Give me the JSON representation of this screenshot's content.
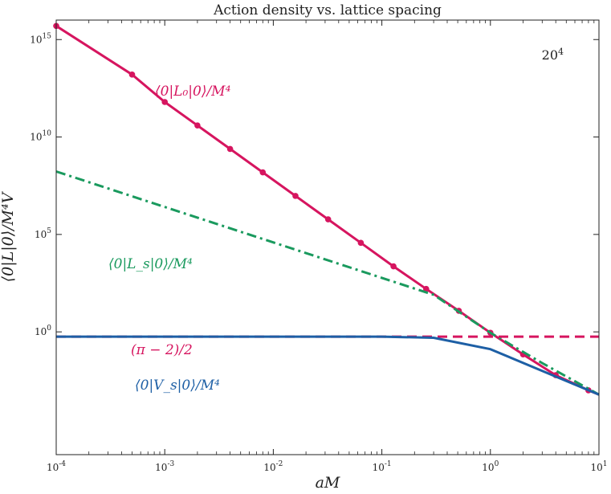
{
  "chart_data": {
    "type": "line",
    "title": "Action density vs. lattice spacing",
    "xlabel": "aM",
    "ylabel": "⟨0|L|0⟩/M⁴V",
    "x_scale": "log",
    "y_scale": "log",
    "xlim": [
      0.0001,
      10
    ],
    "ylim_log10": [
      -6.3,
      16
    ],
    "x_ticks": [
      {
        "value": 0.0001,
        "base": "10",
        "exp": "-4"
      },
      {
        "value": 0.001,
        "base": "10",
        "exp": "-3"
      },
      {
        "value": 0.01,
        "base": "10",
        "exp": "-2"
      },
      {
        "value": 0.1,
        "base": "10",
        "exp": "-1"
      },
      {
        "value": 1,
        "base": "10",
        "exp": "0"
      },
      {
        "value": 10,
        "base": "10",
        "exp": "1"
      }
    ],
    "y_ticks": [
      {
        "value": 1,
        "base": "10",
        "exp": "0"
      },
      {
        "value": 100000,
        "base": "10",
        "exp": "5"
      },
      {
        "value": 10000000000,
        "base": "10",
        "exp": "10"
      },
      {
        "value": 1000000000000000,
        "base": "10",
        "exp": "15"
      }
    ],
    "corner_label": {
      "base": "20",
      "exp": "4"
    },
    "series": [
      {
        "name": "⟨0|L₀|0⟩/M⁴",
        "color": "#d6155f",
        "style": "solid-markers",
        "x": [
          0.0001,
          0.0005,
          0.001,
          0.002,
          0.004,
          0.008,
          0.016,
          0.032,
          0.064,
          0.128,
          0.256,
          0.512,
          1,
          2,
          4,
          8,
          10
        ],
        "y": [
          5000000000000000.0,
          16000000000000.0,
          625000000000.0,
          39000000000.0,
          2440000000.0,
          153000000.0,
          9500000.0,
          596000.0,
          37000.0,
          2300.0,
          160.0,
          12,
          0.9,
          0.07,
          0.006,
          0.001,
          0.0006
        ]
      },
      {
        "name": "⟨0|L_s|0⟩/M⁴",
        "color": "#1a9a5e",
        "style": "dash-dot",
        "x": [
          0.0001,
          0.3,
          1,
          3,
          10
        ],
        "y": [
          170000000.0,
          80,
          0.9,
          0.025,
          0.0006
        ]
      },
      {
        "name": "(π − 2)/2",
        "color": "#d6155f",
        "style": "dashed",
        "x": [
          0.0001,
          10
        ],
        "y": [
          0.5708,
          0.5708
        ]
      },
      {
        "name": "⟨0|V_s|0⟩/M⁴",
        "color": "#1d5fa5",
        "style": "solid",
        "x": [
          0.0001,
          0.1,
          0.3,
          1,
          3,
          10
        ],
        "y": [
          0.5708,
          0.5708,
          0.5,
          0.13,
          0.01,
          0.0006
        ]
      }
    ],
    "annotations": [
      {
        "text": "⟨0|L₀|0⟩/M⁴",
        "color": "#d6155f"
      },
      {
        "text": "⟨0|L_s|0⟩/M⁴",
        "color": "#1a9a5e"
      },
      {
        "text": "(π − 2)/2",
        "color": "#d6155f"
      },
      {
        "text": "⟨0|V_s|0⟩/M⁴",
        "color": "#1d5fa5"
      }
    ]
  }
}
